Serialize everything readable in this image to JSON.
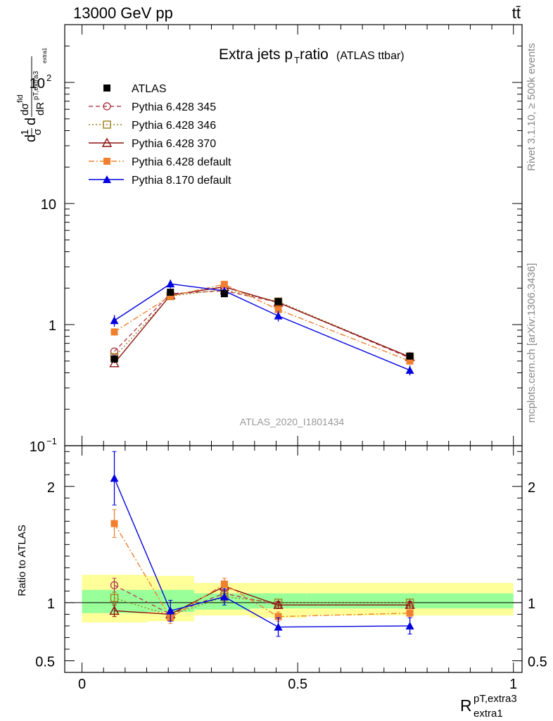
{
  "header": {
    "left": "13000 GeV pp",
    "right": "tt̄"
  },
  "watermarks": {
    "rivet": "Rivet 3.1.10, ≥ 500k events",
    "mcplots": "mcplots.cern.ch [arXiv:1306.3436]",
    "analysis": "ATLAS_2020_I1801434"
  },
  "chart_data": [
    {
      "type": "line",
      "title": "Extra jets p",
      "title_sub": "T",
      "title_rest": " ratio",
      "title_small": "(ATLAS ttbar)",
      "ylabel": "dσ/dR, normalised (1/σ)",
      "yscale": "log",
      "ylim": [
        0.1,
        300
      ],
      "xlim": [
        -0.04,
        1.02
      ],
      "y_tick_labels": {
        "p2": "10",
        "p1": "10",
        "p0": "1",
        "m1": "10"
      },
      "y_tick_exp": {
        "p2": "2",
        "m1": "−1"
      },
      "x": [
        0.075,
        0.205,
        0.33,
        0.455,
        0.76
      ],
      "series": [
        {
          "name": "ATLAS",
          "color": "#000000",
          "values": [
            0.52,
            1.85,
            1.8,
            1.55,
            0.55
          ],
          "err": [
            0.03,
            0.05,
            0.05,
            0.05,
            0.02
          ]
        },
        {
          "name": "Pythia 6.428 345",
          "color": "#b04050",
          "values": [
            0.6,
            1.8,
            1.9,
            1.53,
            0.53
          ]
        },
        {
          "name": "Pythia 6.428 346",
          "color": "#a08020",
          "values": [
            0.54,
            1.72,
            1.95,
            1.55,
            0.54
          ]
        },
        {
          "name": "Pythia 6.428 370",
          "color": "#8b1010",
          "values": [
            0.48,
            1.75,
            2.05,
            1.52,
            0.54
          ]
        },
        {
          "name": "Pythia 6.428 default",
          "color": "#f08030",
          "values": [
            0.87,
            1.72,
            2.15,
            1.33,
            0.5
          ],
          "err": [
            0.06,
            0.05,
            0.06,
            0.05,
            0.02
          ]
        },
        {
          "name": "Pythia 8.170 default",
          "color": "#0000e0",
          "values": [
            1.08,
            2.17,
            1.9,
            1.18,
            0.42
          ],
          "err": [
            0.12,
            0.18,
            0.12,
            0.12,
            0.04
          ]
        }
      ],
      "legend_position": "top-left"
    },
    {
      "type": "line",
      "ylabel": "Ratio to ATLAS",
      "xlabel": "R",
      "xlabel_sup": "pT,extra3",
      "xlabel_sub": "extra1",
      "ylim": [
        0.4,
        2.35
      ],
      "xlim": [
        -0.04,
        1.02
      ],
      "y_ticks": [
        "0.5",
        "1",
        "2"
      ],
      "x_ticks": [
        "0",
        "0.5",
        "1"
      ],
      "x": [
        0.075,
        0.205,
        0.33,
        0.455,
        0.76
      ],
      "bands": {
        "edges": [
          0.0,
          0.15,
          0.26,
          0.39,
          0.52,
          1.0
        ],
        "outer": [
          [
            0.83,
            1.24
          ],
          [
            0.84,
            1.23
          ],
          [
            0.89,
            1.17
          ],
          [
            0.87,
            1.17
          ],
          [
            0.89,
            1.17
          ]
        ],
        "inner": [
          [
            0.91,
            1.11
          ],
          [
            0.92,
            1.11
          ],
          [
            0.94,
            1.08
          ],
          [
            0.95,
            1.08
          ],
          [
            0.95,
            1.08
          ]
        ],
        "outer_color": "#ffff99",
        "inner_color": "#99ff99"
      },
      "series": [
        {
          "name": "Pythia 6.428 345",
          "color": "#b04050",
          "values": [
            1.15,
            0.9,
            1.08,
            0.98,
            0.98
          ],
          "err": [
            0.06,
            0.04,
            0.04,
            0.03,
            0.03
          ]
        },
        {
          "name": "Pythia 6.428 346",
          "color": "#a08020",
          "values": [
            1.04,
            0.89,
            1.05,
            1.0,
            1.0
          ],
          "err": [
            0.05,
            0.04,
            0.04,
            0.03,
            0.03
          ]
        },
        {
          "name": "Pythia 6.428 370",
          "color": "#8b1010",
          "values": [
            0.93,
            0.9,
            1.14,
            0.98,
            0.98
          ],
          "err": [
            0.05,
            0.04,
            0.04,
            0.03,
            0.03
          ]
        },
        {
          "name": "Pythia 6.428 default",
          "color": "#f08030",
          "values": [
            1.68,
            0.87,
            1.16,
            0.88,
            0.91
          ],
          "err": [
            0.12,
            0.05,
            0.05,
            0.04,
            0.04
          ]
        },
        {
          "name": "Pythia 8.170 default",
          "color": "#0000e0",
          "values": [
            2.07,
            0.93,
            1.05,
            0.79,
            0.8
          ],
          "err": [
            0.23,
            0.09,
            0.07,
            0.08,
            0.07
          ]
        }
      ]
    }
  ]
}
